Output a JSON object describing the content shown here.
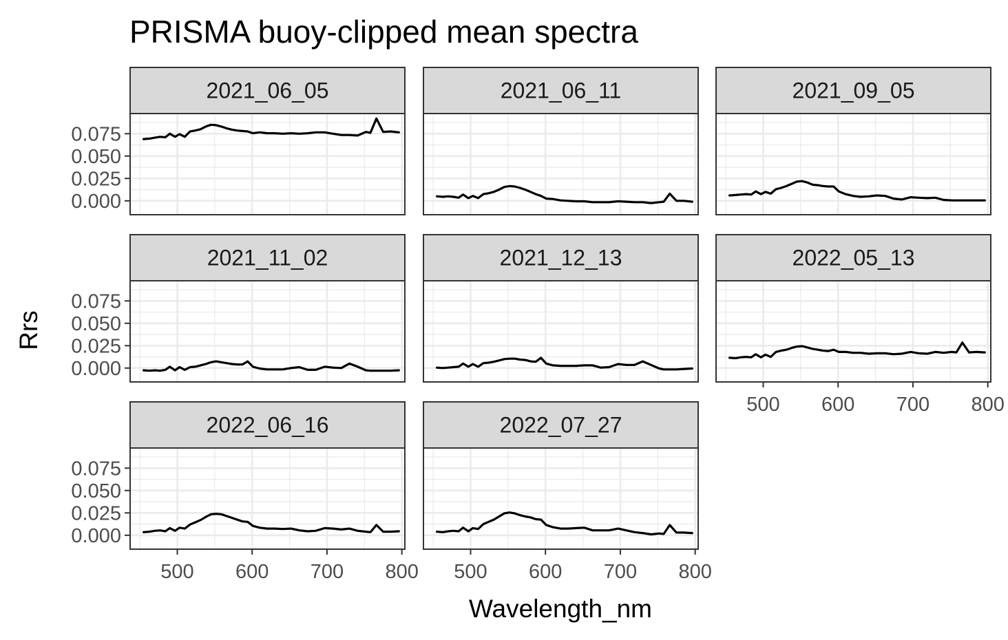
{
  "chart_data": {
    "type": "line",
    "title": "PRISMA buoy-clipped mean spectra",
    "xlabel": "Wavelength_nm",
    "ylabel": "Rrs",
    "xlim": [
      437,
      804
    ],
    "ylim": [
      -0.0155,
      0.0975
    ],
    "x_ticks": [
      500,
      600,
      700,
      800
    ],
    "x_tick_labels": [
      "500",
      "600",
      "700",
      "800"
    ],
    "y_ticks": [
      0.0,
      0.025,
      0.05,
      0.075
    ],
    "y_tick_labels": [
      "0.000",
      "0.025",
      "0.050",
      "0.075"
    ],
    "grid": true,
    "facet_layout": {
      "ncol": 3,
      "nrow": 3
    },
    "x": [
      455,
      463,
      470,
      477,
      484,
      490,
      497,
      503,
      510,
      517,
      524,
      531,
      538,
      545,
      552,
      559,
      566,
      573,
      580,
      587,
      594,
      601,
      610,
      620,
      630,
      641,
      652,
      663,
      674,
      685,
      697,
      708,
      719,
      730,
      741,
      752,
      758,
      766,
      775,
      785,
      796
    ],
    "panels": [
      {
        "name": "2021_06_05",
        "values": [
          0.069,
          0.0695,
          0.0705,
          0.0715,
          0.071,
          0.075,
          0.0715,
          0.0745,
          0.0715,
          0.0775,
          0.0785,
          0.08,
          0.083,
          0.085,
          0.0845,
          0.083,
          0.081,
          0.0795,
          0.0785,
          0.078,
          0.0775,
          0.0755,
          0.0765,
          0.0755,
          0.0755,
          0.075,
          0.0755,
          0.075,
          0.0755,
          0.0765,
          0.0765,
          0.075,
          0.0735,
          0.0735,
          0.073,
          0.077,
          0.076,
          0.092,
          0.077,
          0.0775,
          0.0765
        ]
      },
      {
        "name": "2021_06_11",
        "values": [
          0.005,
          0.0045,
          0.005,
          0.0045,
          0.0035,
          0.007,
          0.003,
          0.0055,
          0.003,
          0.0075,
          0.0085,
          0.01,
          0.0125,
          0.0155,
          0.0165,
          0.016,
          0.0145,
          0.0125,
          0.01,
          0.0075,
          0.0055,
          0.0025,
          0.002,
          0.0005,
          0.0,
          -0.0005,
          -0.0005,
          -0.0015,
          -0.0015,
          -0.0015,
          -0.0005,
          -0.001,
          -0.0015,
          -0.0015,
          -0.0025,
          -0.0015,
          -0.001,
          0.008,
          0.0,
          0.0,
          -0.001
        ]
      },
      {
        "name": "2021_09_05",
        "values": [
          0.006,
          0.0065,
          0.007,
          0.0075,
          0.007,
          0.0105,
          0.0075,
          0.01,
          0.008,
          0.013,
          0.0145,
          0.0165,
          0.019,
          0.0215,
          0.022,
          0.0205,
          0.018,
          0.0175,
          0.0165,
          0.016,
          0.016,
          0.0105,
          0.0075,
          0.0055,
          0.0045,
          0.005,
          0.006,
          0.0055,
          0.0025,
          0.0015,
          0.004,
          0.0035,
          0.003,
          0.0035,
          0.001,
          0.0005,
          0.0005,
          0.0005,
          0.0005,
          0.0005,
          0.0005
        ]
      },
      {
        "name": "2021_11_02",
        "values": [
          -0.0025,
          -0.003,
          -0.0025,
          -0.003,
          -0.002,
          0.0015,
          -0.0025,
          0.001,
          -0.002,
          0.001,
          0.0015,
          0.003,
          0.0045,
          0.0065,
          0.0075,
          0.0065,
          0.0055,
          0.0045,
          0.004,
          0.004,
          0.0075,
          0.0015,
          -0.0005,
          -0.0015,
          -0.0015,
          -0.0015,
          0.0,
          0.001,
          -0.002,
          -0.002,
          0.0015,
          0.0005,
          0.0,
          0.005,
          0.0015,
          -0.0025,
          -0.003,
          -0.003,
          -0.003,
          -0.003,
          -0.0025
        ]
      },
      {
        "name": "2021_12_13",
        "values": [
          0.0005,
          0.0,
          0.0005,
          0.001,
          0.0015,
          0.005,
          0.0015,
          0.0045,
          0.0015,
          0.0055,
          0.006,
          0.007,
          0.0085,
          0.01,
          0.0105,
          0.0105,
          0.0095,
          0.009,
          0.0075,
          0.007,
          0.0115,
          0.005,
          0.003,
          0.0025,
          0.0025,
          0.0025,
          0.003,
          0.003,
          0.0005,
          0.001,
          0.0045,
          0.0035,
          0.0035,
          0.0075,
          0.0035,
          -0.0005,
          -0.0015,
          -0.0015,
          -0.0015,
          -0.001,
          -0.0005
        ]
      },
      {
        "name": "2022_05_13",
        "values": [
          0.0115,
          0.011,
          0.012,
          0.0125,
          0.012,
          0.0155,
          0.012,
          0.015,
          0.0125,
          0.018,
          0.0195,
          0.0205,
          0.0225,
          0.024,
          0.0245,
          0.023,
          0.0215,
          0.0205,
          0.0195,
          0.019,
          0.0205,
          0.018,
          0.018,
          0.017,
          0.017,
          0.016,
          0.0165,
          0.0165,
          0.0155,
          0.016,
          0.018,
          0.0165,
          0.016,
          0.018,
          0.017,
          0.018,
          0.0175,
          0.0285,
          0.0175,
          0.018,
          0.0175
        ]
      },
      {
        "name": "2022_06_16",
        "values": [
          0.0035,
          0.004,
          0.005,
          0.0055,
          0.0045,
          0.008,
          0.005,
          0.0085,
          0.0075,
          0.012,
          0.0145,
          0.017,
          0.0205,
          0.0235,
          0.024,
          0.0235,
          0.0215,
          0.0195,
          0.0175,
          0.0155,
          0.015,
          0.0105,
          0.0085,
          0.0075,
          0.0075,
          0.007,
          0.0075,
          0.0055,
          0.0045,
          0.005,
          0.008,
          0.0075,
          0.0065,
          0.0075,
          0.005,
          0.004,
          0.0035,
          0.0115,
          0.004,
          0.004,
          0.0045
        ]
      },
      {
        "name": "2022_07_27",
        "values": [
          0.004,
          0.0035,
          0.0045,
          0.005,
          0.0045,
          0.0085,
          0.0045,
          0.008,
          0.007,
          0.0125,
          0.015,
          0.0175,
          0.021,
          0.0245,
          0.0255,
          0.0245,
          0.0225,
          0.021,
          0.02,
          0.018,
          0.0175,
          0.0115,
          0.009,
          0.0075,
          0.0075,
          0.008,
          0.0085,
          0.0055,
          0.0055,
          0.0055,
          0.0075,
          0.0055,
          0.0035,
          0.0025,
          0.001,
          0.002,
          0.0015,
          0.0115,
          0.003,
          0.003,
          0.0025
        ]
      }
    ]
  }
}
